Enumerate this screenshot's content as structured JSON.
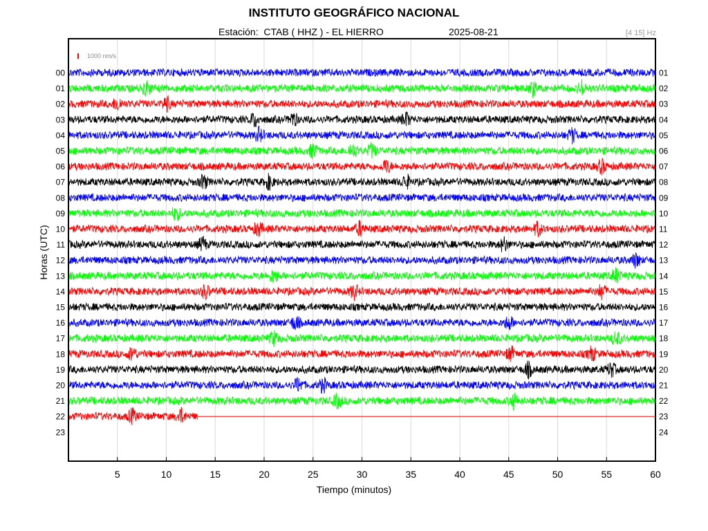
{
  "header": {
    "title": "INSTITUTO GEOGRÁFICO NACIONAL",
    "subtitle": "Estación:  CTAB ( HHZ ) - EL HIERRO",
    "date": "2025-08-21",
    "band": "[4 15] Hz",
    "scale_label": "1000 nm/s"
  },
  "colors": {
    "cycle": [
      "#0000ff",
      "#00ff00",
      "#ff0000",
      "#000000"
    ],
    "frame": "#000000",
    "grid": "#d9d9d9",
    "scale_bar": "#ff0000"
  },
  "chart_data": {
    "type": "line",
    "title": "INSTITUTO GEOGRÁFICO NACIONAL",
    "xlabel": "Tiempo (minutos)",
    "ylabel": "Horas (UTC)",
    "xlim": [
      0,
      60
    ],
    "x_ticks": [
      5,
      10,
      15,
      20,
      25,
      30,
      35,
      40,
      45,
      50,
      55,
      60
    ],
    "grid": true,
    "left_labels": [
      "00",
      "01",
      "02",
      "03",
      "04",
      "05",
      "06",
      "07",
      "08",
      "09",
      "10",
      "11",
      "12",
      "13",
      "14",
      "15",
      "16",
      "17",
      "18",
      "19",
      "20",
      "21",
      "22",
      "23"
    ],
    "right_labels": [
      "01",
      "02",
      "03",
      "04",
      "05",
      "06",
      "07",
      "08",
      "09",
      "10",
      "11",
      "12",
      "13",
      "14",
      "15",
      "16",
      "17",
      "18",
      "19",
      "20",
      "21",
      "22",
      "23",
      "24"
    ],
    "traces": [
      {
        "hour": "00",
        "color": "blue",
        "end_min": 60,
        "events": []
      },
      {
        "hour": "01",
        "color": "green",
        "end_min": 60,
        "events": [
          8,
          47.5,
          52.5
        ]
      },
      {
        "hour": "02",
        "color": "red",
        "end_min": 60,
        "events": [
          5,
          10
        ]
      },
      {
        "hour": "03",
        "color": "black",
        "end_min": 60,
        "events": [
          19,
          23,
          34.5
        ]
      },
      {
        "hour": "04",
        "color": "blue",
        "end_min": 60,
        "events": [
          19.5,
          51.5
        ]
      },
      {
        "hour": "05",
        "color": "green",
        "end_min": 60,
        "events": [
          25,
          29,
          31
        ]
      },
      {
        "hour": "06",
        "color": "red",
        "end_min": 60,
        "events": [
          32.5,
          54.5
        ]
      },
      {
        "hour": "07",
        "color": "black",
        "end_min": 60,
        "events": [
          13.8,
          20.5,
          34.5
        ]
      },
      {
        "hour": "08",
        "color": "blue",
        "end_min": 60,
        "events": []
      },
      {
        "hour": "09",
        "color": "green",
        "end_min": 60,
        "events": [
          11
        ]
      },
      {
        "hour": "10",
        "color": "red",
        "end_min": 60,
        "events": [
          19.4,
          29.8,
          48
        ]
      },
      {
        "hour": "11",
        "color": "black",
        "end_min": 60,
        "events": [
          13.7,
          44.5
        ]
      },
      {
        "hour": "12",
        "color": "blue",
        "end_min": 60,
        "events": [
          58
        ]
      },
      {
        "hour": "13",
        "color": "green",
        "end_min": 60,
        "events": [
          21,
          56
        ]
      },
      {
        "hour": "14",
        "color": "red",
        "end_min": 60,
        "events": [
          14,
          29.2,
          54.5
        ]
      },
      {
        "hour": "15",
        "color": "black",
        "end_min": 60,
        "events": []
      },
      {
        "hour": "16",
        "color": "blue",
        "end_min": 60,
        "events": [
          23.2,
          45
        ]
      },
      {
        "hour": "17",
        "color": "green",
        "end_min": 60,
        "events": [
          21,
          56
        ]
      },
      {
        "hour": "18",
        "color": "red",
        "end_min": 60,
        "events": [
          6.5,
          45.2,
          53.5
        ]
      },
      {
        "hour": "19",
        "color": "black",
        "end_min": 60,
        "events": [
          47,
          55.5
        ]
      },
      {
        "hour": "20",
        "color": "blue",
        "end_min": 60,
        "events": [
          23.5,
          26
        ]
      },
      {
        "hour": "21",
        "color": "green",
        "end_min": 60,
        "events": [
          27.5,
          45.5
        ]
      },
      {
        "hour": "22",
        "color": "red",
        "end_min": 13.2,
        "events": [
          6.5,
          11.5
        ]
      },
      {
        "hour": "23",
        "color": "none",
        "end_min": 0,
        "events": []
      }
    ]
  }
}
